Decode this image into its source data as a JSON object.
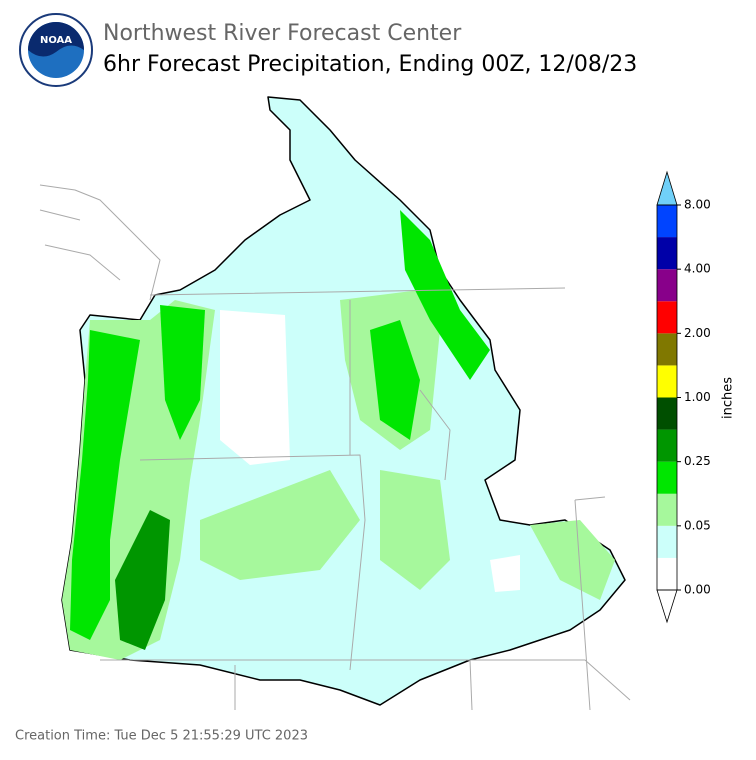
{
  "header": {
    "logo_text": "NOAA",
    "title": "Northwest River Forecast Center",
    "subtitle": "6hr Forecast Precipitation, Ending 00Z, 12/08/23"
  },
  "colorbar": {
    "label": "inches",
    "ticks": [
      {
        "value": 0,
        "label": "0.00"
      },
      {
        "value": 0.05,
        "label": "0.05"
      },
      {
        "value": 0.25,
        "label": "0.25"
      },
      {
        "value": 1,
        "label": "1.00"
      },
      {
        "value": 2,
        "label": "2.00"
      },
      {
        "value": 4,
        "label": "4.00"
      },
      {
        "value": 8,
        "label": "8.00"
      }
    ],
    "colors": [
      "#ffffff",
      "#ccfffa",
      "#a6f89c",
      "#00e600",
      "#009600",
      "#004f00",
      "#ffff00",
      "#807800",
      "#ff0000",
      "#88008a",
      "#0000a8",
      "#0044ff"
    ],
    "over_color": "#70d0f8",
    "under_color": "#ffffff"
  },
  "footer": {
    "creation_time": "Creation Time: Tue Dec 5 21:55:29 UTC 2023"
  }
}
